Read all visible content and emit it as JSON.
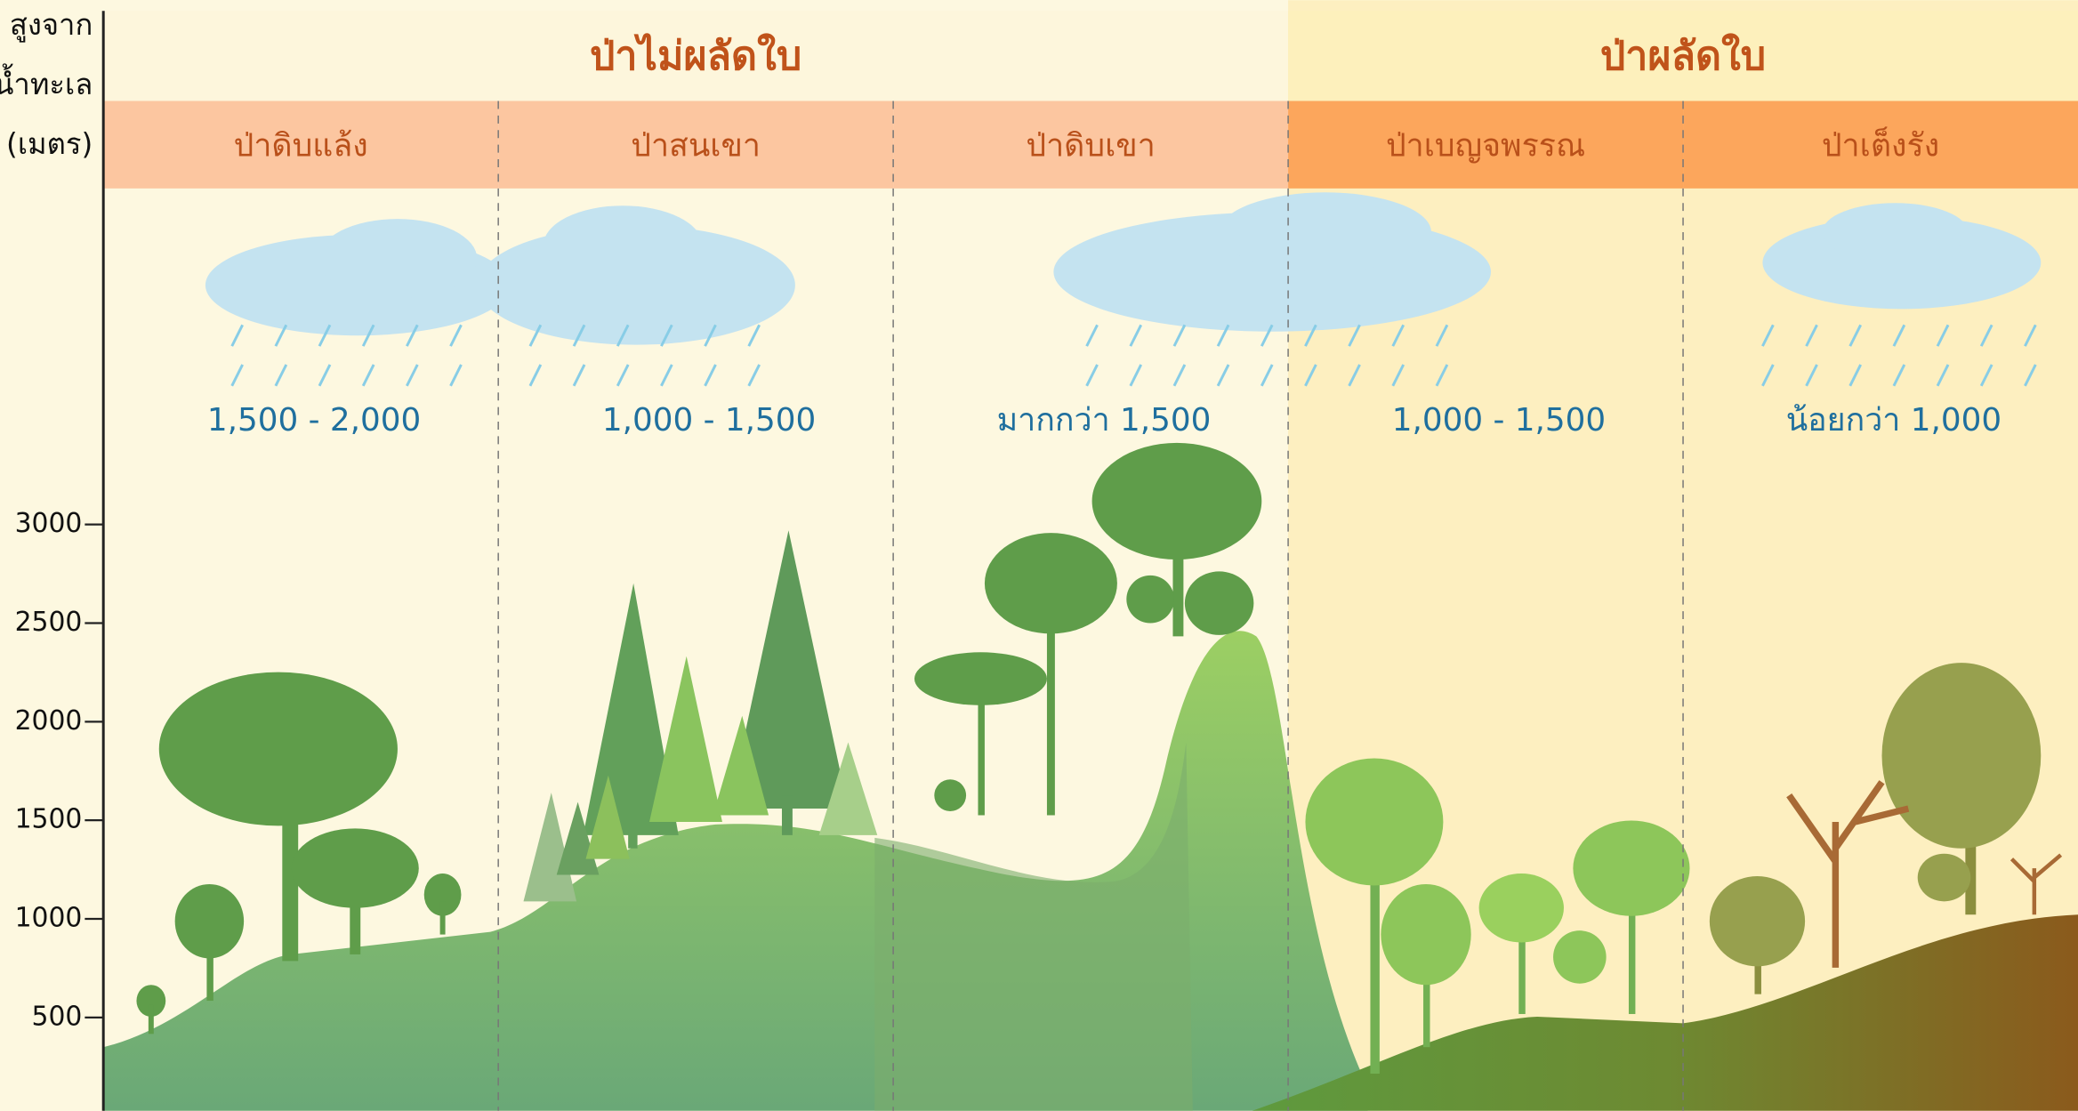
{
  "axis": {
    "title": [
      "สูงจาก",
      "น้ำทะเล",
      "(เมตร)"
    ],
    "ticks": [
      3000,
      2500,
      2000,
      1500,
      1000,
      500
    ]
  },
  "groups": [
    {
      "label": "ป่าไม่ผลัดใบ",
      "zones": [
        {
          "label": "ป่าดิบแล้ง",
          "rainfall": "1,500 - 2,000"
        },
        {
          "label": "ป่าสนเขา",
          "rainfall": "1,000 - 1,500"
        },
        {
          "label": "ป่าดิบเขา",
          "rainfall": "มากกว่า 1,500"
        }
      ]
    },
    {
      "label": "ป่าผลัดใบ",
      "zones": [
        {
          "label": "ป่าเบญจพรรณ",
          "rainfall": "1,000 - 1,500"
        },
        {
          "label": "ป่าเต็งรัง",
          "rainfall": "น้อยกว่า 1,000"
        }
      ]
    }
  ]
}
